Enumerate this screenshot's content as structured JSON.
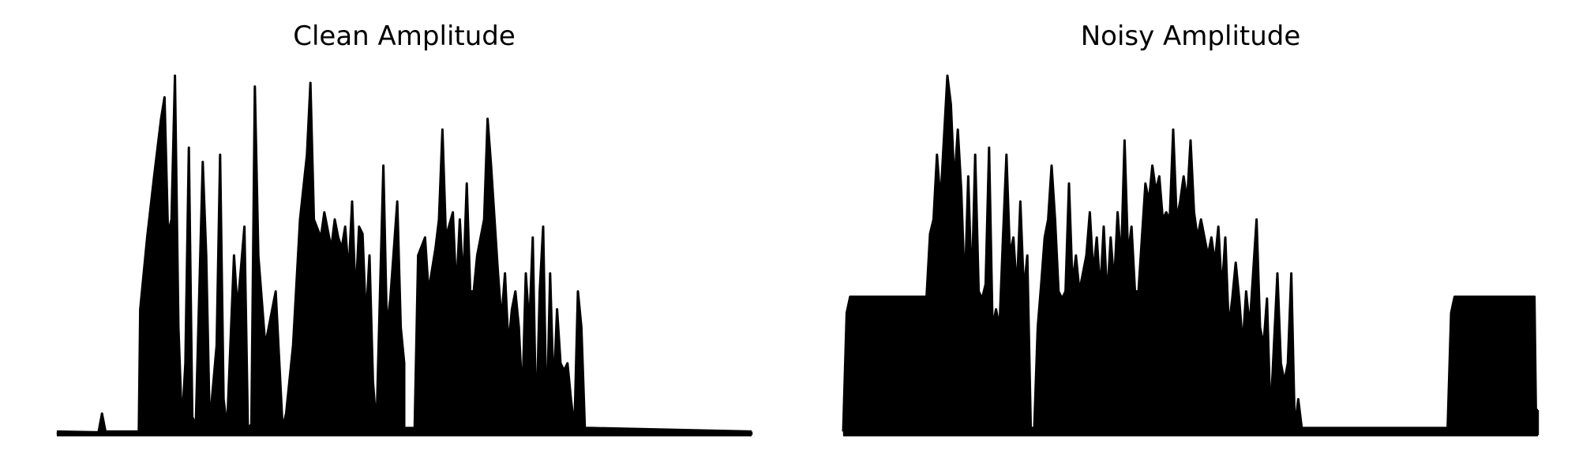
{
  "chart_data": [
    {
      "type": "line",
      "title": "Clean Amplitude",
      "xlabel": "",
      "ylabel": "",
      "axes_visible": false,
      "grid": false,
      "ylim": [
        0,
        1
      ],
      "series": [
        {
          "color": "#000000",
          "envelope": [
            [
              0.0,
              0.01
            ],
            [
              0.06,
              0.008
            ],
            [
              0.065,
              0.06
            ],
            [
              0.07,
              0.01
            ],
            [
              0.118,
              0.01
            ],
            [
              0.12,
              0.35
            ],
            [
              0.13,
              0.55
            ],
            [
              0.14,
              0.72
            ],
            [
              0.15,
              0.88
            ],
            [
              0.155,
              0.94
            ],
            [
              0.16,
              0.56
            ],
            [
              0.165,
              0.6
            ],
            [
              0.17,
              1.0
            ],
            [
              0.175,
              0.3
            ],
            [
              0.18,
              0.03
            ],
            [
              0.185,
              0.2
            ],
            [
              0.19,
              0.8
            ],
            [
              0.195,
              0.05
            ],
            [
              0.2,
              0.03
            ],
            [
              0.21,
              0.76
            ],
            [
              0.215,
              0.5
            ],
            [
              0.22,
              0.03
            ],
            [
              0.23,
              0.25
            ],
            [
              0.235,
              0.78
            ],
            [
              0.24,
              0.1
            ],
            [
              0.245,
              0.02
            ],
            [
              0.255,
              0.5
            ],
            [
              0.26,
              0.35
            ],
            [
              0.27,
              0.58
            ],
            [
              0.275,
              0.02
            ],
            [
              0.28,
              0.03
            ],
            [
              0.285,
              0.97
            ],
            [
              0.29,
              0.5
            ],
            [
              0.3,
              0.25
            ],
            [
              0.31,
              0.35
            ],
            [
              0.315,
              0.4
            ],
            [
              0.325,
              0.02
            ],
            [
              0.33,
              0.06
            ],
            [
              0.34,
              0.25
            ],
            [
              0.35,
              0.6
            ],
            [
              0.36,
              0.78
            ],
            [
              0.365,
              0.98
            ],
            [
              0.37,
              0.6
            ],
            [
              0.38,
              0.55
            ],
            [
              0.385,
              0.62
            ],
            [
              0.395,
              0.52
            ],
            [
              0.4,
              0.6
            ],
            [
              0.405,
              0.55
            ],
            [
              0.41,
              0.52
            ],
            [
              0.415,
              0.58
            ],
            [
              0.42,
              0.45
            ],
            [
              0.425,
              0.65
            ],
            [
              0.43,
              0.38
            ],
            [
              0.435,
              0.58
            ],
            [
              0.44,
              0.56
            ],
            [
              0.445,
              0.32
            ],
            [
              0.45,
              0.5
            ],
            [
              0.455,
              0.15
            ],
            [
              0.46,
              0.02
            ],
            [
              0.47,
              0.75
            ],
            [
              0.475,
              0.3
            ],
            [
              0.48,
              0.38
            ],
            [
              0.49,
              0.65
            ],
            [
              0.495,
              0.3
            ],
            [
              0.5,
              0.2
            ],
            [
              0.5,
              0.02
            ],
            [
              0.515,
              0.02
            ],
            [
              0.52,
              0.5
            ],
            [
              0.53,
              0.55
            ],
            [
              0.535,
              0.4
            ],
            [
              0.545,
              0.52
            ],
            [
              0.55,
              0.6
            ],
            [
              0.555,
              0.85
            ],
            [
              0.56,
              0.55
            ],
            [
              0.57,
              0.62
            ],
            [
              0.575,
              0.4
            ],
            [
              0.58,
              0.6
            ],
            [
              0.585,
              0.42
            ],
            [
              0.59,
              0.7
            ],
            [
              0.595,
              0.4
            ],
            [
              0.6,
              0.4
            ],
            [
              0.605,
              0.5
            ],
            [
              0.61,
              0.55
            ],
            [
              0.615,
              0.6
            ],
            [
              0.62,
              0.88
            ],
            [
              0.625,
              0.75
            ],
            [
              0.63,
              0.6
            ],
            [
              0.635,
              0.45
            ],
            [
              0.64,
              0.32
            ],
            [
              0.645,
              0.45
            ],
            [
              0.65,
              0.25
            ],
            [
              0.655,
              0.35
            ],
            [
              0.66,
              0.4
            ],
            [
              0.665,
              0.3
            ],
            [
              0.67,
              0.1
            ],
            [
              0.675,
              0.45
            ],
            [
              0.68,
              0.3
            ],
            [
              0.685,
              0.55
            ],
            [
              0.69,
              0.02
            ],
            [
              0.695,
              0.4
            ],
            [
              0.7,
              0.58
            ],
            [
              0.705,
              0.02
            ],
            [
              0.71,
              0.45
            ],
            [
              0.715,
              0.12
            ],
            [
              0.72,
              0.35
            ],
            [
              0.725,
              0.2
            ],
            [
              0.73,
              0.18
            ],
            [
              0.735,
              0.2
            ],
            [
              0.74,
              0.1
            ],
            [
              0.745,
              0.02
            ],
            [
              0.75,
              0.4
            ],
            [
              0.755,
              0.3
            ],
            [
              0.76,
              0.02
            ],
            [
              0.765,
              0.02
            ],
            [
              0.77,
              0.02
            ],
            [
              1.0,
              0.01
            ]
          ]
        }
      ]
    },
    {
      "type": "line",
      "title": "Noisy Amplitude",
      "xlabel": "",
      "ylabel": "",
      "axes_visible": false,
      "grid": false,
      "ylim": [
        0,
        1
      ],
      "series": [
        {
          "color": "#000000",
          "envelope": [
            [
              0.0,
              0.01
            ],
            [
              0.005,
              0.34
            ],
            [
              0.01,
              0.385
            ],
            [
              0.12,
              0.385
            ],
            [
              0.125,
              0.56
            ],
            [
              0.13,
              0.6
            ],
            [
              0.135,
              0.78
            ],
            [
              0.14,
              0.65
            ],
            [
              0.15,
              1.0
            ],
            [
              0.155,
              0.92
            ],
            [
              0.16,
              0.7
            ],
            [
              0.165,
              0.85
            ],
            [
              0.17,
              0.68
            ],
            [
              0.175,
              0.4
            ],
            [
              0.18,
              0.72
            ],
            [
              0.185,
              0.4
            ],
            [
              0.19,
              0.78
            ],
            [
              0.195,
              0.4
            ],
            [
              0.2,
              0.38
            ],
            [
              0.205,
              0.42
            ],
            [
              0.21,
              0.8
            ],
            [
              0.215,
              0.3
            ],
            [
              0.22,
              0.35
            ],
            [
              0.225,
              0.3
            ],
            [
              0.23,
              0.55
            ],
            [
              0.235,
              0.78
            ],
            [
              0.24,
              0.5
            ],
            [
              0.245,
              0.55
            ],
            [
              0.25,
              0.4
            ],
            [
              0.255,
              0.65
            ],
            [
              0.26,
              0.4
            ],
            [
              0.265,
              0.5
            ],
            [
              0.27,
              0.02
            ],
            [
              0.275,
              0.02
            ],
            [
              0.28,
              0.3
            ],
            [
              0.285,
              0.42
            ],
            [
              0.29,
              0.55
            ],
            [
              0.295,
              0.6
            ],
            [
              0.3,
              0.75
            ],
            [
              0.305,
              0.6
            ],
            [
              0.31,
              0.4
            ],
            [
              0.315,
              0.38
            ],
            [
              0.32,
              0.4
            ],
            [
              0.325,
              0.7
            ],
            [
              0.33,
              0.42
            ],
            [
              0.335,
              0.5
            ],
            [
              0.34,
              0.4
            ],
            [
              0.345,
              0.45
            ],
            [
              0.35,
              0.5
            ],
            [
              0.355,
              0.62
            ],
            [
              0.36,
              0.45
            ],
            [
              0.365,
              0.55
            ],
            [
              0.37,
              0.4
            ],
            [
              0.375,
              0.58
            ],
            [
              0.38,
              0.38
            ],
            [
              0.385,
              0.55
            ],
            [
              0.39,
              0.42
            ],
            [
              0.395,
              0.62
            ],
            [
              0.4,
              0.48
            ],
            [
              0.405,
              0.82
            ],
            [
              0.41,
              0.5
            ],
            [
              0.415,
              0.58
            ],
            [
              0.42,
              0.4
            ],
            [
              0.425,
              0.4
            ],
            [
              0.43,
              0.55
            ],
            [
              0.435,
              0.7
            ],
            [
              0.44,
              0.65
            ],
            [
              0.445,
              0.75
            ],
            [
              0.45,
              0.68
            ],
            [
              0.455,
              0.72
            ],
            [
              0.46,
              0.6
            ],
            [
              0.465,
              0.62
            ],
            [
              0.47,
              0.6
            ],
            [
              0.475,
              0.85
            ],
            [
              0.48,
              0.6
            ],
            [
              0.485,
              0.65
            ],
            [
              0.49,
              0.72
            ],
            [
              0.495,
              0.65
            ],
            [
              0.5,
              0.82
            ],
            [
              0.505,
              0.62
            ],
            [
              0.51,
              0.55
            ],
            [
              0.515,
              0.6
            ],
            [
              0.52,
              0.55
            ],
            [
              0.525,
              0.5
            ],
            [
              0.53,
              0.55
            ],
            [
              0.535,
              0.48
            ],
            [
              0.54,
              0.58
            ],
            [
              0.545,
              0.4
            ],
            [
              0.55,
              0.55
            ],
            [
              0.555,
              0.3
            ],
            [
              0.56,
              0.38
            ],
            [
              0.565,
              0.48
            ],
            [
              0.57,
              0.38
            ],
            [
              0.575,
              0.25
            ],
            [
              0.58,
              0.4
            ],
            [
              0.585,
              0.3
            ],
            [
              0.59,
              0.45
            ],
            [
              0.595,
              0.6
            ],
            [
              0.6,
              0.3
            ],
            [
              0.605,
              0.25
            ],
            [
              0.61,
              0.38
            ],
            [
              0.615,
              0.05
            ],
            [
              0.62,
              0.25
            ],
            [
              0.625,
              0.45
            ],
            [
              0.63,
              0.2
            ],
            [
              0.635,
              0.15
            ],
            [
              0.64,
              0.2
            ],
            [
              0.645,
              0.45
            ],
            [
              0.65,
              0.02
            ],
            [
              0.655,
              0.1
            ],
            [
              0.66,
              0.02
            ],
            [
              0.665,
              0.02
            ],
            [
              0.87,
              0.02
            ],
            [
              0.875,
              0.34
            ],
            [
              0.88,
              0.385
            ],
            [
              0.995,
              0.385
            ],
            [
              0.997,
              0.07
            ],
            [
              1.0,
              0.07
            ]
          ]
        }
      ]
    }
  ]
}
